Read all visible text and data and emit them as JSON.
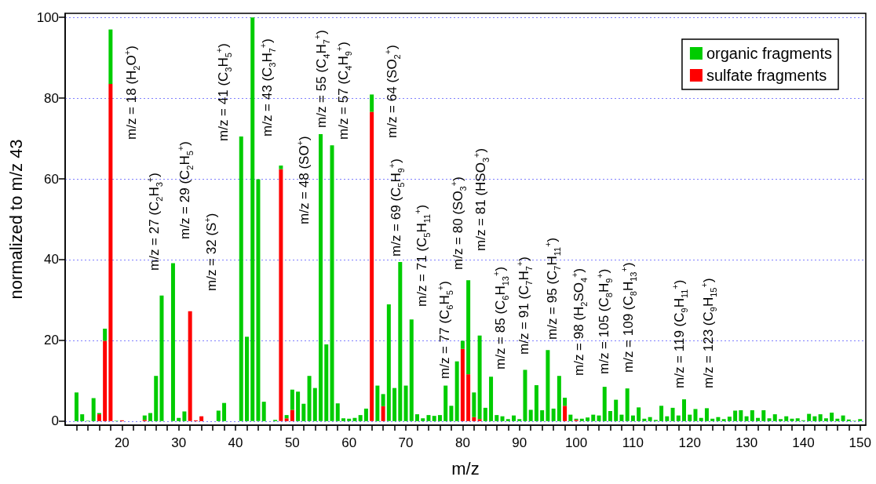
{
  "chart_data": {
    "type": "bar",
    "xlabel": "m/z",
    "ylabel": "normalized to m/z 43",
    "stacked": true,
    "grid": "y",
    "legend": "top right",
    "x": [
      12,
      13,
      14,
      15,
      16,
      17,
      18,
      19,
      20,
      21,
      22,
      23,
      24,
      25,
      26,
      27,
      28,
      29,
      30,
      31,
      32,
      33,
      34,
      35,
      36,
      37,
      38,
      39,
      40,
      41,
      42,
      43,
      44,
      45,
      46,
      47,
      48,
      49,
      50,
      51,
      52,
      53,
      54,
      55,
      56,
      57,
      58,
      59,
      60,
      61,
      62,
      63,
      64,
      65,
      66,
      67,
      68,
      69,
      70,
      71,
      72,
      73,
      74,
      75,
      76,
      77,
      78,
      79,
      80,
      81,
      82,
      83,
      84,
      85,
      86,
      87,
      88,
      89,
      90,
      91,
      92,
      93,
      94,
      95,
      96,
      97,
      98,
      99,
      100,
      101,
      102,
      103,
      104,
      105,
      106,
      107,
      108,
      109,
      110,
      111,
      112,
      113,
      114,
      115,
      116,
      117,
      118,
      119,
      120,
      121,
      122,
      123,
      124,
      125,
      126,
      127,
      128,
      129,
      130,
      131,
      132,
      133,
      134,
      135,
      136,
      137,
      138,
      139,
      140,
      141,
      142,
      143,
      144,
      145,
      146,
      147,
      148,
      149,
      150
    ],
    "series": [
      {
        "name": "sulfate fragments",
        "color": "#ff0000",
        "values": [
          null,
          null,
          null,
          null,
          1.7,
          19.9,
          83.5,
          null,
          0.2,
          null,
          null,
          null,
          0.3,
          null,
          null,
          null,
          null,
          null,
          null,
          null,
          27.2,
          0.2,
          1.2,
          null,
          null,
          null,
          null,
          null,
          null,
          null,
          null,
          null,
          null,
          null,
          null,
          null,
          62.4,
          0.7,
          2.8,
          null,
          null,
          null,
          null,
          null,
          null,
          null,
          null,
          null,
          null,
          null,
          null,
          null,
          76.6,
          null,
          3.7,
          null,
          null,
          null,
          null,
          null,
          null,
          null,
          null,
          null,
          null,
          null,
          null,
          null,
          17.9,
          11.6,
          1.0,
          0.5,
          null,
          null,
          null,
          null,
          null,
          null,
          null,
          null,
          null,
          null,
          null,
          null,
          null,
          null,
          3.8,
          null,
          0.3,
          null,
          null,
          null,
          null,
          null,
          null,
          null,
          null,
          null,
          null,
          null,
          null,
          null,
          null,
          null,
          null,
          null,
          null,
          null,
          null,
          null,
          null,
          null,
          null,
          null,
          null,
          null,
          null,
          null,
          null,
          null,
          null,
          null,
          null,
          null,
          null,
          null,
          null,
          null,
          null,
          null,
          null,
          null,
          null,
          null,
          null,
          null,
          null,
          null,
          null
        ]
      },
      {
        "name": "organic fragments",
        "color": "#00cc00",
        "values": [
          7.1,
          1.7,
          0.1,
          5.7,
          0.3,
          3.0,
          13.5,
          0.1,
          0,
          0,
          0,
          0,
          1.1,
          2.0,
          11.2,
          31.1,
          0,
          39.1,
          0.8,
          2.4,
          0,
          0,
          0,
          0,
          0,
          2.6,
          4.5,
          0,
          0,
          70.5,
          20.9,
          100,
          59.9,
          4.8,
          0,
          0.3,
          0.9,
          0.8,
          5.0,
          7.3,
          4.3,
          11.2,
          8.2,
          71.1,
          19.0,
          68.3,
          4.4,
          0.7,
          0.6,
          0.8,
          1.5,
          3.1,
          4.3,
          8.8,
          3.0,
          28.9,
          8.2,
          39.4,
          8.8,
          25.2,
          1.7,
          0.7,
          1.5,
          1.3,
          1.5,
          8.8,
          3.8,
          14.8,
          2.0,
          23.3,
          6.1,
          20.7,
          3.3,
          11.0,
          1.5,
          1.2,
          0.5,
          1.4,
          0.5,
          12.7,
          2.8,
          8.9,
          2.7,
          17.6,
          3.1,
          11.2,
          2.0,
          1.6,
          0.3,
          0.6,
          0.9,
          1.6,
          1.4,
          8.5,
          2.5,
          5.3,
          1.6,
          8.1,
          1.4,
          3.4,
          0.6,
          1.0,
          0.3,
          3.8,
          1.2,
          3.3,
          1.4,
          5.4,
          1.6,
          3.0,
          0.8,
          3.2,
          0.6,
          1.0,
          0.5,
          1.1,
          2.6,
          2.7,
          1.2,
          2.7,
          0.8,
          2.7,
          0.7,
          1.7,
          0.5,
          1.2,
          0.6,
          0.7,
          0.2,
          1.8,
          1.2,
          1.7,
          0.7,
          2.1,
          0.6,
          1.4,
          0.4,
          0.1,
          0.5
        ]
      }
    ],
    "xlim": [
      10,
      151
    ],
    "xticks": [
      {
        "value": 12,
        "label": null
      },
      {
        "value": 14,
        "label": null
      },
      {
        "value": 16,
        "label": null
      },
      {
        "value": 18,
        "label": null
      },
      20,
      {
        "value": 22,
        "label": null
      },
      {
        "value": 24,
        "label": null
      },
      {
        "value": 26,
        "label": null
      },
      {
        "value": 28,
        "label": null
      },
      30,
      {
        "value": 32,
        "label": null
      },
      {
        "value": 34,
        "label": null
      },
      {
        "value": 36,
        "label": null
      },
      {
        "value": 38,
        "label": null
      },
      40,
      {
        "value": 42,
        "label": null
      },
      {
        "value": 44,
        "label": null
      },
      {
        "value": 46,
        "label": null
      },
      {
        "value": 48,
        "label": null
      },
      50,
      {
        "value": 52,
        "label": null
      },
      {
        "value": 54,
        "label": null
      },
      {
        "value": 56,
        "label": null
      },
      {
        "value": 58,
        "label": null
      },
      60,
      {
        "value": 62,
        "label": null
      },
      {
        "value": 64,
        "label": null
      },
      {
        "value": 66,
        "label": null
      },
      {
        "value": 68,
        "label": null
      },
      70,
      {
        "value": 72,
        "label": null
      },
      {
        "value": 74,
        "label": null
      },
      {
        "value": 76,
        "label": null
      },
      {
        "value": 78,
        "label": null
      },
      80,
      {
        "value": 82,
        "label": null
      },
      {
        "value": 84,
        "label": null
      },
      {
        "value": 86,
        "label": null
      },
      {
        "value": 88,
        "label": null
      },
      90,
      {
        "value": 92,
        "label": null
      },
      {
        "value": 94,
        "label": null
      },
      {
        "value": 96,
        "label": null
      },
      {
        "value": 98,
        "label": null
      },
      100,
      {
        "value": 102,
        "label": null
      },
      {
        "value": 104,
        "label": null
      },
      {
        "value": 106,
        "label": null
      },
      {
        "value": 108,
        "label": null
      },
      110,
      {
        "value": 112,
        "label": null
      },
      {
        "value": 114,
        "label": null
      },
      {
        "value": 116,
        "label": null
      },
      {
        "value": 118,
        "label": null
      },
      120,
      {
        "value": 122,
        "label": null
      },
      {
        "value": 124,
        "label": null
      },
      {
        "value": 126,
        "label": null
      },
      {
        "value": 128,
        "label": null
      },
      130,
      {
        "value": 132,
        "label": null
      },
      {
        "value": 134,
        "label": null
      },
      {
        "value": 136,
        "label": null
      },
      {
        "value": 138,
        "label": null
      },
      140,
      {
        "value": 142,
        "label": null
      },
      {
        "value": 144,
        "label": null
      },
      {
        "value": 146,
        "label": null
      },
      {
        "value": 148,
        "label": null
      },
      150
    ],
    "ylim": [
      -1,
      101
    ],
    "yticks": [
      0,
      20,
      40,
      60,
      80,
      100
    ],
    "annotations": [
      "m/z = 18 (H$_{2}$O$^{+}$)",
      "m/z = 27 (C$_{2}$H$_{3}$$^{+}$)",
      "m/z = 29 (C$_{2}$H$_{5}$$^{+}$)",
      "m/z = 32 (S$^{+}$)",
      "m/z = 41 (C$_{3}$H$_{5}$$^{+}$)",
      "m/z = 43 (C$_{3}$H$_{7}$$^{+}$)",
      "m/z = 48 (SO$^{+}$)",
      "m/z = 55 (C$_{4}$H$_{7}$$^{+}$)",
      "m/z = 57 (C$_{4}$H$_{9}$$^{+}$)",
      "m/z = 64 (SO$_{2}$$^{+}$)",
      "m/z = 69 (C$_{5}$H$_{9}$$^{+}$)",
      "m/z = 71 (C$_{5}$H$_{11}$$^{+}$)",
      "m/z = 77 (C$_{6}$H$_{5}$$^{+}$)",
      "m/z = 80 (SO$_{3}$$^{+}$)",
      "m/z = 81 (HSO$_{3}$$^{+}$)",
      "m/z = 85 (C$_{6}$H$_{13}$$^{+}$)",
      "m/z = 91 (C$_{7}$H$_{7}$$^{+}$)",
      "m/z = 95 (C$_{7}$H$_{11}$$^{+}$)",
      "m/z = 98 (H$_{2}$SO$_{4}$$^{+}$)",
      "m/z = 105 (C$_{8}$H$_{9}$$^{+}$)",
      "m/z = 109 (C$_{8}$H$_{13}$$^{+}$)",
      "m/z = 119 (C$_{9}$H$_{11}$$^{+}$)",
      "m/z = 123 (C$_{9}$H$_{15}$$^{+}$)"
    ]
  }
}
